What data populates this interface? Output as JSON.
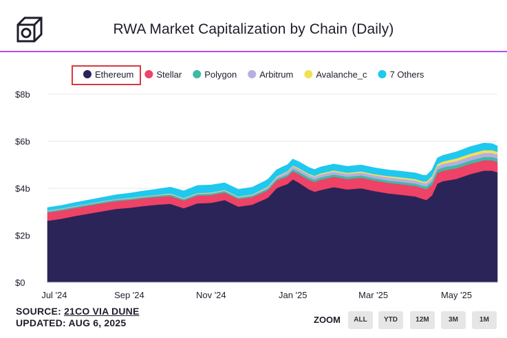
{
  "header": {
    "title": "RWA Market Capitalization by Chain (Daily)"
  },
  "chart_data": {
    "type": "area",
    "stacked": true,
    "title": "RWA Market Capitalization by Chain (Daily)",
    "xlabel": "",
    "ylabel": "",
    "ylim": [
      0,
      8
    ],
    "yticks": [
      0,
      2,
      4,
      6,
      8
    ],
    "ytick_labels": [
      "$0",
      "$2b",
      "$4b",
      "$6b",
      "$8b"
    ],
    "xtick_labels": [
      "Jul '24",
      "Sep '24",
      "Nov '24",
      "Jan '25",
      "Mar '25",
      "May '25"
    ],
    "xtick_positions": [
      5,
      60,
      120,
      180,
      239,
      300
    ],
    "legend_position": "top",
    "highlighted_legend": "Ethereum",
    "x": [
      0,
      10,
      20,
      30,
      40,
      50,
      60,
      70,
      80,
      90,
      100,
      110,
      120,
      130,
      140,
      150,
      160,
      162,
      168,
      172,
      176,
      180,
      184,
      188,
      192,
      196,
      200,
      210,
      220,
      230,
      240,
      250,
      260,
      270,
      275,
      278,
      282,
      286,
      290,
      300,
      310,
      320,
      326,
      330
    ],
    "series": [
      {
        "name": "Ethereum",
        "color": "#2b2458",
        "values": [
          2.62,
          2.7,
          2.82,
          2.92,
          3.02,
          3.12,
          3.17,
          3.24,
          3.3,
          3.34,
          3.15,
          3.36,
          3.38,
          3.5,
          3.22,
          3.3,
          3.55,
          3.62,
          4.0,
          4.1,
          4.18,
          4.38,
          4.25,
          4.1,
          3.95,
          3.85,
          3.92,
          4.05,
          3.95,
          4.0,
          3.88,
          3.78,
          3.72,
          3.65,
          3.55,
          3.5,
          3.7,
          4.2,
          4.3,
          4.4,
          4.6,
          4.75,
          4.75,
          4.68
        ]
      },
      {
        "name": "Stellar",
        "color": "#ee4266",
        "values": [
          0.35,
          0.35,
          0.34,
          0.34,
          0.34,
          0.33,
          0.33,
          0.33,
          0.33,
          0.33,
          0.33,
          0.33,
          0.33,
          0.32,
          0.32,
          0.32,
          0.32,
          0.32,
          0.32,
          0.32,
          0.32,
          0.34,
          0.36,
          0.38,
          0.4,
          0.42,
          0.44,
          0.44,
          0.44,
          0.45,
          0.45,
          0.45,
          0.45,
          0.45,
          0.46,
          0.46,
          0.45,
          0.45,
          0.45,
          0.45,
          0.44,
          0.44,
          0.44,
          0.44
        ]
      },
      {
        "name": "Polygon",
        "color": "#3dbaa6",
        "values": [
          0.05,
          0.05,
          0.05,
          0.05,
          0.05,
          0.05,
          0.05,
          0.05,
          0.05,
          0.06,
          0.06,
          0.06,
          0.06,
          0.06,
          0.06,
          0.06,
          0.07,
          0.07,
          0.07,
          0.07,
          0.08,
          0.09,
          0.1,
          0.1,
          0.1,
          0.1,
          0.1,
          0.1,
          0.1,
          0.1,
          0.1,
          0.1,
          0.1,
          0.1,
          0.1,
          0.12,
          0.14,
          0.14,
          0.14,
          0.14,
          0.14,
          0.14,
          0.14,
          0.14
        ]
      },
      {
        "name": "Arbitrum",
        "color": "#b7aee0",
        "values": [
          0.03,
          0.03,
          0.03,
          0.03,
          0.03,
          0.03,
          0.03,
          0.03,
          0.03,
          0.03,
          0.03,
          0.03,
          0.03,
          0.03,
          0.03,
          0.04,
          0.05,
          0.06,
          0.08,
          0.1,
          0.12,
          0.12,
          0.12,
          0.12,
          0.12,
          0.12,
          0.12,
          0.12,
          0.12,
          0.12,
          0.12,
          0.13,
          0.13,
          0.13,
          0.13,
          0.14,
          0.15,
          0.15,
          0.15,
          0.16,
          0.17,
          0.17,
          0.17,
          0.17
        ]
      },
      {
        "name": "Avalanche_c",
        "color": "#f1e05a",
        "values": [
          0.01,
          0.01,
          0.01,
          0.01,
          0.01,
          0.01,
          0.01,
          0.01,
          0.01,
          0.02,
          0.02,
          0.02,
          0.02,
          0.02,
          0.02,
          0.02,
          0.03,
          0.03,
          0.03,
          0.03,
          0.03,
          0.04,
          0.04,
          0.04,
          0.04,
          0.04,
          0.05,
          0.05,
          0.05,
          0.05,
          0.05,
          0.06,
          0.06,
          0.06,
          0.06,
          0.07,
          0.08,
          0.09,
          0.1,
          0.12,
          0.12,
          0.12,
          0.12,
          0.12
        ]
      },
      {
        "name": "7 Others",
        "color": "#1ec8ef",
        "values": [
          0.12,
          0.13,
          0.14,
          0.15,
          0.16,
          0.18,
          0.2,
          0.22,
          0.24,
          0.27,
          0.3,
          0.32,
          0.32,
          0.3,
          0.3,
          0.3,
          0.3,
          0.3,
          0.28,
          0.28,
          0.27,
          0.27,
          0.27,
          0.27,
          0.27,
          0.27,
          0.27,
          0.27,
          0.27,
          0.27,
          0.27,
          0.26,
          0.26,
          0.26,
          0.26,
          0.26,
          0.26,
          0.26,
          0.26,
          0.28,
          0.3,
          0.3,
          0.28,
          0.25
        ]
      }
    ]
  },
  "footer": {
    "source_prefix": "SOURCE: ",
    "source_link": "21CO VIA DUNE",
    "updated": "UPDATED: AUG 6, 2025"
  },
  "zoom": {
    "label": "ZOOM",
    "buttons": [
      "ALL",
      "YTD",
      "12M",
      "3M",
      "1M"
    ]
  }
}
